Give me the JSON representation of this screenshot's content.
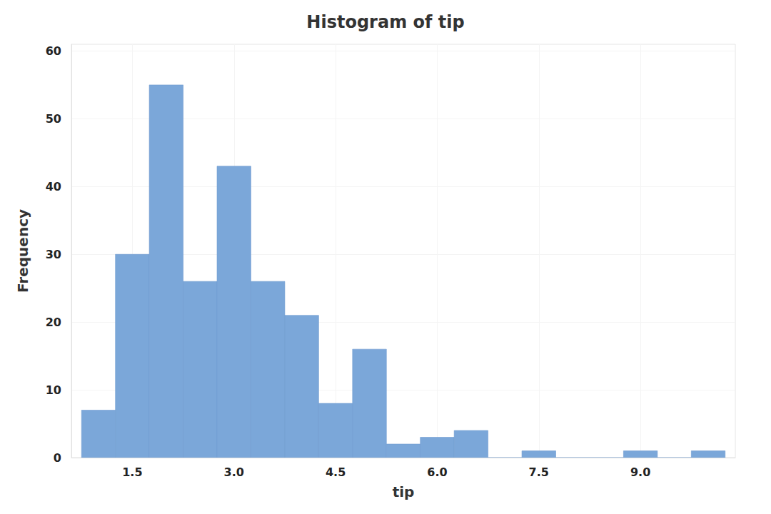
{
  "chart_data": {
    "type": "histogram",
    "title": "Histogram of tip",
    "xlabel": "tip",
    "ylabel": "Frequency",
    "bins": [
      0.75,
      1.25,
      1.75,
      2.25,
      2.75,
      3.25,
      3.75,
      4.25,
      4.75,
      5.25,
      5.75,
      6.25,
      6.75,
      7.25,
      7.75,
      8.25,
      8.75,
      9.25,
      9.75,
      10.25
    ],
    "values": [
      7,
      30,
      55,
      26,
      43,
      26,
      21,
      8,
      16,
      2,
      3,
      4,
      0,
      1,
      0,
      0,
      1,
      0,
      1
    ],
    "color": "#7ba7d9",
    "xlim": [
      0.6,
      10.4
    ],
    "xticks": [
      {
        "value": 1.5,
        "label": "1.5"
      },
      {
        "value": 3.0,
        "label": "3.0"
      },
      {
        "value": 4.5,
        "label": "4.5"
      },
      {
        "value": 6.0,
        "label": "6.0"
      },
      {
        "value": 7.5,
        "label": "7.5"
      },
      {
        "value": 9.0,
        "label": "9.0"
      }
    ],
    "ylim": [
      0,
      61
    ],
    "yticks": [
      0,
      10,
      20,
      30,
      40,
      50,
      60
    ],
    "grid": true
  }
}
